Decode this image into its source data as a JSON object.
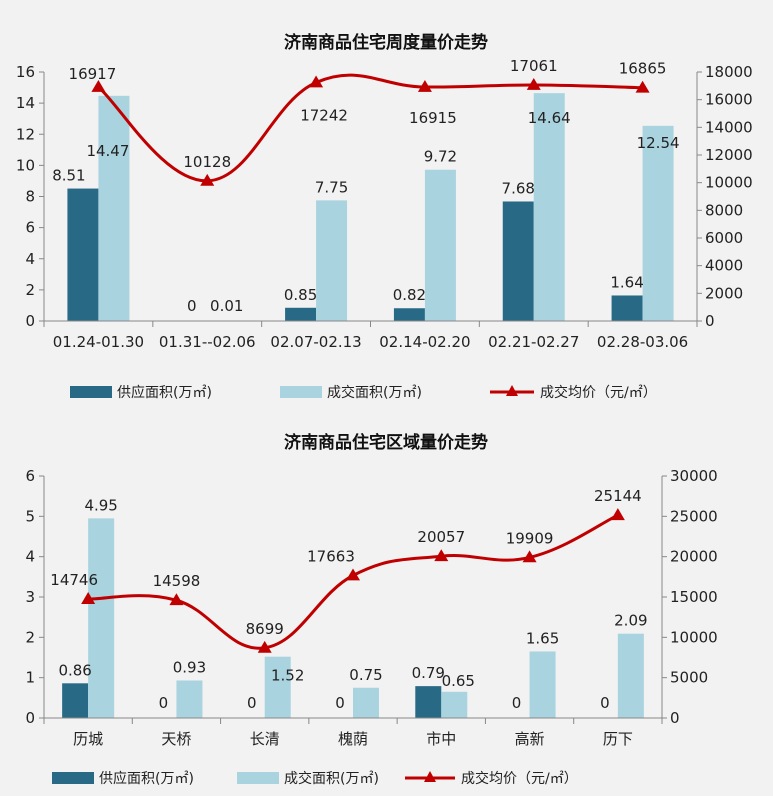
{
  "chart_data": [
    {
      "type": "bar",
      "title": "济南商品住宅周度量价走势",
      "categories": [
        "01.24-01.30",
        "01.31--02.06",
        "02.07-02.13",
        "02.14-02.20",
        "02.21-02.27",
        "02.28-03.06"
      ],
      "ylim": [
        0,
        16
      ],
      "yticks": [
        "0",
        "2",
        "4",
        "6",
        "8",
        "10",
        "12",
        "14",
        "16"
      ],
      "y2lim": [
        0,
        18000
      ],
      "y2ticks": [
        "0",
        "2000",
        "4000",
        "6000",
        "8000",
        "10000",
        "12000",
        "14000",
        "16000",
        "18000"
      ],
      "series": [
        {
          "name": "供应面积(万㎡)",
          "axis": "left",
          "kind": "bar",
          "color": "#286a86",
          "values": [
            8.51,
            0,
            0.85,
            0.82,
            7.68,
            1.64
          ]
        },
        {
          "name": "成交面积(万㎡)",
          "axis": "left",
          "kind": "bar",
          "color": "#a9d3df",
          "values": [
            14.47,
            0.01,
            7.75,
            9.72,
            14.64,
            12.54
          ]
        },
        {
          "name": "成交均价（元/㎡）",
          "axis": "right",
          "kind": "line",
          "color": "#c00000",
          "values": [
            16917,
            10128,
            17242,
            16915,
            17061,
            16865
          ]
        }
      ],
      "labels": [
        [
          "8.51",
          "0",
          "0.85",
          "0.82",
          "7.68",
          "1.64"
        ],
        [
          "14.47",
          "0.01",
          "7.75",
          "9.72",
          "14.64",
          "12.54"
        ],
        [
          "16917",
          "10128",
          "17242",
          "16915",
          "17061",
          "16865"
        ]
      ],
      "legend": "bottom"
    },
    {
      "type": "bar",
      "title": "济南商品住宅区域量价走势",
      "categories": [
        "历城",
        "天桥",
        "长清",
        "槐荫",
        "市中",
        "高新",
        "历下"
      ],
      "ylim": [
        0,
        6
      ],
      "yticks": [
        "0",
        "1",
        "2",
        "3",
        "4",
        "5",
        "6"
      ],
      "y2lim": [
        0,
        30000
      ],
      "y2ticks": [
        "0",
        "5000",
        "10000",
        "15000",
        "20000",
        "25000",
        "30000"
      ],
      "series": [
        {
          "name": "供应面积(万㎡)",
          "axis": "left",
          "kind": "bar",
          "color": "#286a86",
          "values": [
            0.86,
            0,
            0,
            0,
            0.79,
            0,
            0
          ]
        },
        {
          "name": "成交面积(万㎡)",
          "axis": "left",
          "kind": "bar",
          "color": "#a9d3df",
          "values": [
            4.95,
            0.93,
            1.52,
            0.75,
            0.65,
            1.65,
            2.09
          ]
        },
        {
          "name": "成交均价（元/㎡）",
          "axis": "right",
          "kind": "line",
          "color": "#c00000",
          "values": [
            14746,
            14598,
            8699,
            17663,
            20057,
            19909,
            25144
          ]
        }
      ],
      "labels": [
        [
          "0.86",
          "0",
          "0",
          "0",
          "0.79",
          "0",
          "0"
        ],
        [
          "4.95",
          "0.93",
          "1.52",
          "0.75",
          "0.65",
          "1.65",
          "2.09"
        ],
        [
          "14746",
          "14598",
          "8699",
          "17663",
          "20057",
          "19909",
          "25144"
        ]
      ],
      "legend": "bottom"
    }
  ]
}
